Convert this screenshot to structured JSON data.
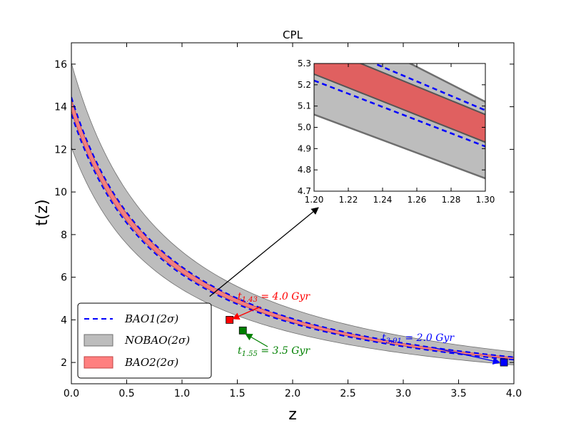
{
  "chart_data": {
    "type": "line",
    "title": "CPL",
    "xlabel": "z",
    "ylabel": "t(z)",
    "xlim": [
      0.0,
      4.0
    ],
    "ylim": [
      1.0,
      17.0
    ],
    "xticks": [
      "0.0",
      "0.5",
      "1.0",
      "1.5",
      "2.0",
      "2.5",
      "3.0",
      "3.5",
      "4.0"
    ],
    "yticks": [
      "2",
      "4",
      "6",
      "8",
      "10",
      "12",
      "14",
      "16"
    ],
    "xtick_values": [
      0.0,
      0.5,
      1.0,
      1.5,
      2.0,
      2.5,
      3.0,
      3.5,
      4.0
    ],
    "ytick_values": [
      2,
      4,
      6,
      8,
      10,
      12,
      14,
      16
    ],
    "curve_params": {
      "t0": 14.0,
      "a": 1.156
    },
    "series": [
      {
        "name": "BAO1(2σ)",
        "kind": "dashed-band",
        "color": "#0000ff",
        "lower_t0": 13.65,
        "upper_t0": 14.45
      },
      {
        "name": "NOBAO(2σ)",
        "kind": "band",
        "color": "#bdbdbd",
        "edge": "#6e6e6e",
        "lower_t0": 12.1,
        "upper_t0": 16.05
      },
      {
        "name": "BAO2(2σ)",
        "kind": "band",
        "color": "#f08080",
        "edge": "#c24444",
        "lower_t0": 13.8,
        "upper_t0": 14.35
      }
    ],
    "legend": {
      "position": "lower-left",
      "entries": [
        "BAO1(2σ)",
        "NOBAO(2σ)",
        "BAO2(2σ)"
      ]
    },
    "markers": [
      {
        "label": "t_{1.43} = 4.0 Gyr",
        "sub": "1.43",
        "text": " = 4.0 Gyr",
        "z": 1.43,
        "t": 4.0,
        "color": "#ff0000"
      },
      {
        "label": "t_{1.55} = 3.5 Gyr",
        "sub": "1.55",
        "text": " = 3.5 Gyr",
        "z": 1.55,
        "t": 3.5,
        "color": "#008000"
      },
      {
        "label": "t_{3.91} = 2.0 Gyr",
        "sub": "3.91",
        "text": " = 2.0 Gyr",
        "z": 3.91,
        "t": 2.0,
        "color": "#0000ff"
      }
    ],
    "inset": {
      "xlim": [
        1.2,
        1.3
      ],
      "ylim": [
        4.7,
        5.3
      ],
      "xticks": [
        "1.20",
        "1.22",
        "1.24",
        "1.26",
        "1.28",
        "1.30"
      ],
      "yticks": [
        "4.7",
        "4.8",
        "4.9",
        "5.0",
        "5.1",
        "5.2",
        "5.3"
      ],
      "xtick_values": [
        1.2,
        1.22,
        1.24,
        1.26,
        1.28,
        1.3
      ],
      "ytick_values": [
        4.7,
        4.8,
        4.9,
        5.0,
        5.1,
        5.2,
        5.3
      ],
      "nobao_lower": [
        5.06,
        4.76
      ],
      "nobao_upper": [
        5.53,
        5.12
      ],
      "bao2_lower": [
        5.25,
        4.93
      ],
      "bao2_upper": [
        5.39,
        5.06
      ],
      "bao1_lower": [
        5.22,
        4.91
      ],
      "bao1_upper": [
        5.42,
        5.08
      ],
      "zoom_from_z": 1.25,
      "zoom_from_t": 5.1
    }
  }
}
